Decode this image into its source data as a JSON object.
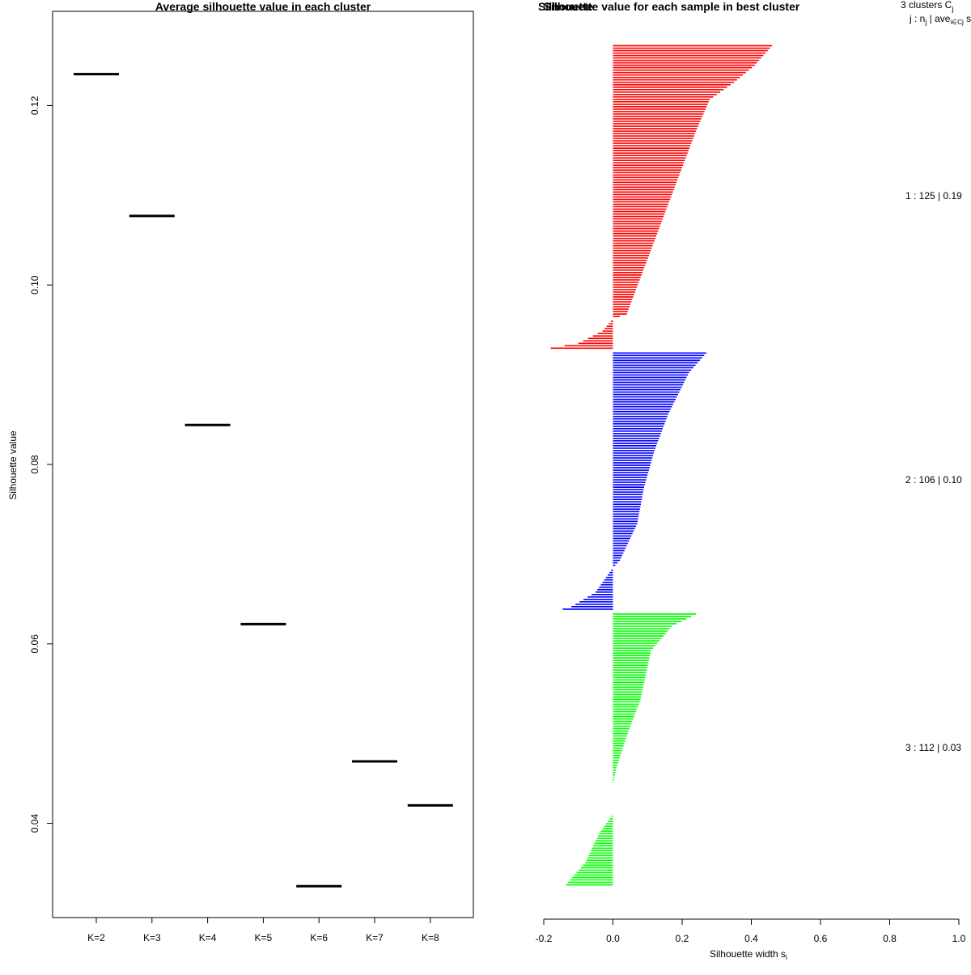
{
  "charts": {
    "left": {
      "title": "Average silhouette value in each cluster",
      "ylabel": "Silhouette value",
      "yticks": [
        "0.04",
        "0.06",
        "0.08",
        "0.10",
        "0.12"
      ]
    },
    "right": {
      "title": "Silhouette value for each sample in best cluster",
      "overlap_text": "Silhouette",
      "xlabel": "Silhouette width s",
      "xlabel_sub": "i",
      "xticks": [
        "-0.2",
        "0.0",
        "0.2",
        "0.4",
        "0.6",
        "0.8",
        "1.0"
      ],
      "legend_header_1": "3  clusters  C",
      "legend_header_1_sub": "j",
      "legend_header_2": "j :  n",
      "legend_header_2_mid": "j",
      "legend_header_2_rest": " | ave",
      "legend_header_2_sub": "i∈Cj",
      "legend_header_2_tail": "  s",
      "cluster_labels": [
        "1 :   125  |  0.19",
        "2 :   106  |  0.10",
        "3 :   112  |  0.03"
      ]
    }
  },
  "chart_data": [
    {
      "type": "scatter",
      "marker": "horizontal-segment",
      "title": "Average silhouette value in each cluster",
      "xlabel": "",
      "ylabel": "Silhouette value",
      "categories": [
        "K=2",
        "K=3",
        "K=4",
        "K=5",
        "K=6",
        "K=7",
        "K=8"
      ],
      "values": [
        0.1235,
        0.1077,
        0.0844,
        0.0622,
        0.033,
        0.0469,
        0.042
      ],
      "ylim": [
        0.0295,
        0.1305
      ],
      "color": "#000000",
      "grid": false
    },
    {
      "type": "bar",
      "orientation": "horizontal",
      "title": "Silhouette value for each sample in best cluster",
      "xlabel": "Silhouette width si",
      "ylabel": "",
      "xlim": [
        -0.2,
        1.0
      ],
      "grid": false,
      "series": [
        {
          "name": "1",
          "n": 125,
          "average": 0.19,
          "color": "#ff0000",
          "keypoints": [
            [
              0,
              0.46
            ],
            [
              8,
              0.41
            ],
            [
              15,
              0.35
            ],
            [
              22,
              0.28
            ],
            [
              35,
              0.24
            ],
            [
              50,
              0.2
            ],
            [
              65,
              0.16
            ],
            [
              80,
              0.12
            ],
            [
              95,
              0.08
            ],
            [
              110,
              0.04
            ],
            [
              112,
              0.0
            ],
            [
              117,
              -0.03
            ],
            [
              122,
              -0.1
            ],
            [
              125,
              -0.22
            ]
          ]
        },
        {
          "name": "2",
          "n": 106,
          "average": 0.1,
          "color": "#0000ff",
          "keypoints": [
            [
              0,
              0.27
            ],
            [
              8,
              0.22
            ],
            [
              25,
              0.16
            ],
            [
              40,
              0.12
            ],
            [
              55,
              0.09
            ],
            [
              70,
              0.07
            ],
            [
              85,
              0.02
            ],
            [
              88,
              0.0
            ],
            [
              98,
              -0.05
            ],
            [
              104,
              -0.12
            ],
            [
              106,
              -0.17
            ]
          ]
        },
        {
          "name": "3",
          "n": 112,
          "average": 0.03,
          "color": "#00ff00",
          "keypoints": [
            [
              0,
              0.24
            ],
            [
              5,
              0.17
            ],
            [
              15,
              0.11
            ],
            [
              35,
              0.08
            ],
            [
              50,
              0.04
            ],
            [
              63,
              0.01
            ],
            [
              70,
              0.0
            ],
            [
              82,
              0.0
            ],
            [
              90,
              -0.04
            ],
            [
              102,
              -0.08
            ],
            [
              110,
              -0.13
            ],
            [
              112,
              -0.14
            ]
          ]
        }
      ]
    }
  ]
}
